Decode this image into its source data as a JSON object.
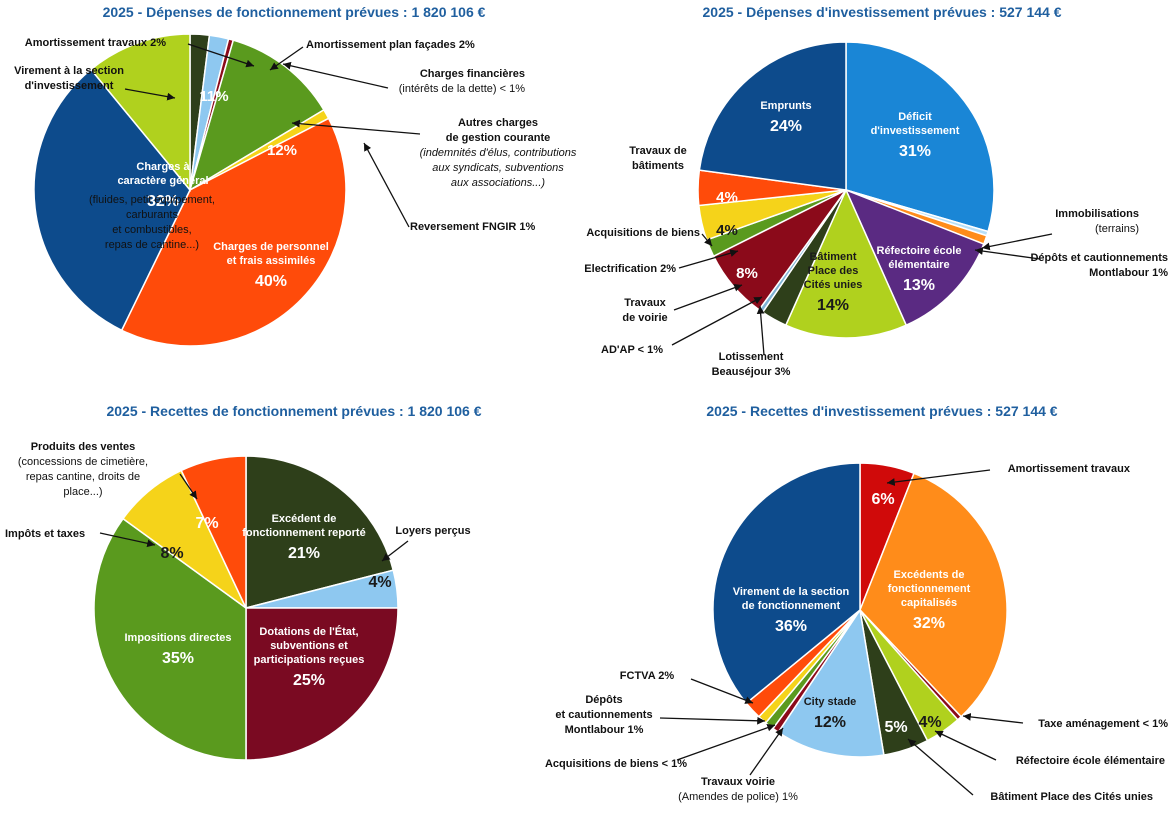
{
  "chart_data": [
    {
      "type": "pie",
      "title": "2025 - Dépenses de fonctionnement prévues : 1 820 106 €",
      "slices": [
        {
          "pct": 2,
          "color": "#2e3f1a"
        },
        {
          "pct": 2,
          "color": "#8ec8f0"
        },
        {
          "pct": 0.5,
          "color": "#8b0a1a"
        },
        {
          "pct": 12,
          "color": "#5a9a1e"
        },
        {
          "pct": 1,
          "color": "#f5d31a"
        },
        {
          "pct": 40,
          "label": "Charges de personnel|et frais assimilés",
          "value_text": "40%",
          "color": "#ff4b0a",
          "text_color": "#ffffff"
        },
        {
          "pct": 32,
          "label": "Charges à|caractère général",
          "value_text": "32%",
          "color": "#0d4b8c",
          "text_color": "#ffffff"
        },
        {
          "pct": 11,
          "color": "#b0d11e"
        }
      ],
      "outer_labels": [
        {
          "lines": [
            "Amortissement travaux  2%"
          ]
        },
        {
          "lines": [
            "Amortissement plan façades  2%"
          ]
        },
        {
          "lines": [
            "Charges financières",
            "(intérêts de la dette)  < 1%"
          ]
        },
        {
          "lines": [
            "Autres charges",
            "de gestion courante",
            "(indemnités d'élus, contributions",
            "aux syndicats, subventions",
            "aux associations...)"
          ]
        },
        {
          "lines": [
            "Reversement FNGIR 1%"
          ]
        },
        {
          "lines": [
            "Virement à la section",
            "d'investissement"
          ]
        },
        {
          "lines": [
            "(fluides, petit équipement,",
            "carburants",
            "et combustibles,",
            "repas de cantine...)"
          ]
        },
        {
          "lines": [
            "11%"
          ]
        },
        {
          "lines": [
            "12%"
          ]
        }
      ]
    },
    {
      "type": "pie",
      "title": "2025 - Dépenses d'investissement prévues : 527 144 €",
      "slices": [
        {
          "pct": 31,
          "label": "Déficit|d'investissement",
          "value_text": "31%",
          "color": "#1a86d6",
          "text_color": "#ffffff"
        },
        {
          "pct": 0.5,
          "color": "#b8dff7"
        },
        {
          "pct": 1,
          "color": "#ff8c1a"
        },
        {
          "pct": 13,
          "label": "Réfectoire école|élémentaire",
          "value_text": "13%",
          "color": "#5a2a82",
          "text_color": "#ffffff"
        },
        {
          "pct": 14,
          "label": "Bâtiment|Place des|Cités unies",
          "value_text": "14%",
          "color": "#b0d11e",
          "text_color": "#1a1a1a"
        },
        {
          "pct": 3,
          "color": "#2e3f1a"
        },
        {
          "pct": 0.5,
          "color": "#7fb3d5"
        },
        {
          "pct": 8,
          "color": "#8b0a1a"
        },
        {
          "pct": 2,
          "color": "#5a9a1e"
        },
        {
          "pct": 4,
          "color": "#f5d31a"
        },
        {
          "pct": 4,
          "color": "#ff4b0a"
        },
        {
          "pct": 24,
          "label": "Emprunts",
          "value_text": "24%",
          "color": "#0d4b8c",
          "text_color": "#ffffff"
        }
      ],
      "outer_labels": [
        {
          "lines": [
            "Immobilisations",
            "(terrains)"
          ]
        },
        {
          "lines": [
            "Dépôts et cautionnements",
            "Montlabour  1%"
          ]
        },
        {
          "lines": [
            "Travaux de",
            "bâtiments"
          ]
        },
        {
          "lines": [
            "Acquisitions de biens"
          ]
        },
        {
          "lines": [
            "Electrification  2%"
          ]
        },
        {
          "lines": [
            "Travaux",
            "de voirie"
          ]
        },
        {
          "lines": [
            "AD'AP  < 1%"
          ]
        },
        {
          "lines": [
            "Lotissement",
            "Beauséjour 3%"
          ]
        },
        {
          "lines": [
            "4%"
          ]
        },
        {
          "lines": [
            "4%"
          ]
        },
        {
          "lines": [
            "8%"
          ]
        }
      ]
    },
    {
      "type": "pie",
      "title": "2025 - Recettes de fonctionnement prévues : 1 820 106 €",
      "slices": [
        {
          "pct": 21,
          "label": "Excédent de|fonctionnement reporté",
          "value_text": "21%",
          "color": "#2e3f1a",
          "text_color": "#ffffff"
        },
        {
          "pct": 4,
          "value_text": "4%",
          "color": "#8ec8f0",
          "text_color": "#1a1a1a"
        },
        {
          "pct": 25,
          "label": "Dotations de l'État,|subventions et|participations reçues",
          "value_text": "25%",
          "color": "#7a0a22",
          "text_color": "#ffffff"
        },
        {
          "pct": 35,
          "label": "Impositions directes",
          "value_text": "35%",
          "color": "#5a9a1e",
          "text_color": "#ffffff"
        },
        {
          "pct": 8,
          "value_text": "8%",
          "color": "#f5d31a",
          "text_color": "#1a1a1a"
        },
        {
          "pct": 7,
          "value_text": "7%",
          "color": "#ff4b0a",
          "text_color": "#ffffff"
        }
      ],
      "outer_labels": [
        {
          "lines": [
            "Produits des ventes",
            "(concessions de cimetière,",
            "repas cantine, droits de",
            "place...)"
          ]
        },
        {
          "lines": [
            "Impôts et taxes"
          ]
        },
        {
          "lines": [
            "Loyers perçus"
          ]
        }
      ]
    },
    {
      "type": "pie",
      "title": "2025 - Recettes d'investissement prévues : 527 144 €",
      "slices": [
        {
          "pct": 6,
          "value_text": "6%",
          "color": "#d00a0a",
          "text_color": "#ffffff"
        },
        {
          "pct": 32,
          "label": "Excédents de|fonctionnement|capitalisés",
          "value_text": "32%",
          "color": "#ff8c1a",
          "text_color": "#ffffff"
        },
        {
          "pct": 0.5,
          "color": "#8b0a1a"
        },
        {
          "pct": 4,
          "value_text": "4%",
          "color": "#b0d11e",
          "text_color": "#1a1a1a"
        },
        {
          "pct": 5,
          "value_text": "5%",
          "color": "#2e3f1a",
          "text_color": "#ffffff"
        },
        {
          "pct": 12,
          "label": "City stade",
          "value_text": "12%",
          "color": "#8ec8f0",
          "text_color": "#1a1a1a"
        },
        {
          "pct": 0.7,
          "color": "#8b0a1a"
        },
        {
          "pct": 1,
          "color": "#5a9a1e"
        },
        {
          "pct": 1,
          "color": "#f5d31a"
        },
        {
          "pct": 2,
          "color": "#ff4b0a"
        },
        {
          "pct": 36,
          "label": "Virement de la section|de fonctionnement",
          "value_text": "36%",
          "color": "#0d4b8c",
          "text_color": "#ffffff"
        }
      ],
      "outer_labels": [
        {
          "lines": [
            "Amortissement travaux"
          ]
        },
        {
          "lines": [
            "Taxe aménagement  < 1%"
          ]
        },
        {
          "lines": [
            "Réfectoire école élémentaire"
          ]
        },
        {
          "lines": [
            "Bâtiment Place des Cités unies"
          ]
        },
        {
          "lines": [
            "FCTVA  2%"
          ]
        },
        {
          "lines": [
            "Dépôts",
            "et cautionnements",
            "Montlabour  1%"
          ]
        },
        {
          "lines": [
            "Acquisitions de biens  < 1%"
          ]
        },
        {
          "lines": [
            "Travaux voirie",
            "(Amendes de police) 1%"
          ]
        }
      ]
    }
  ]
}
